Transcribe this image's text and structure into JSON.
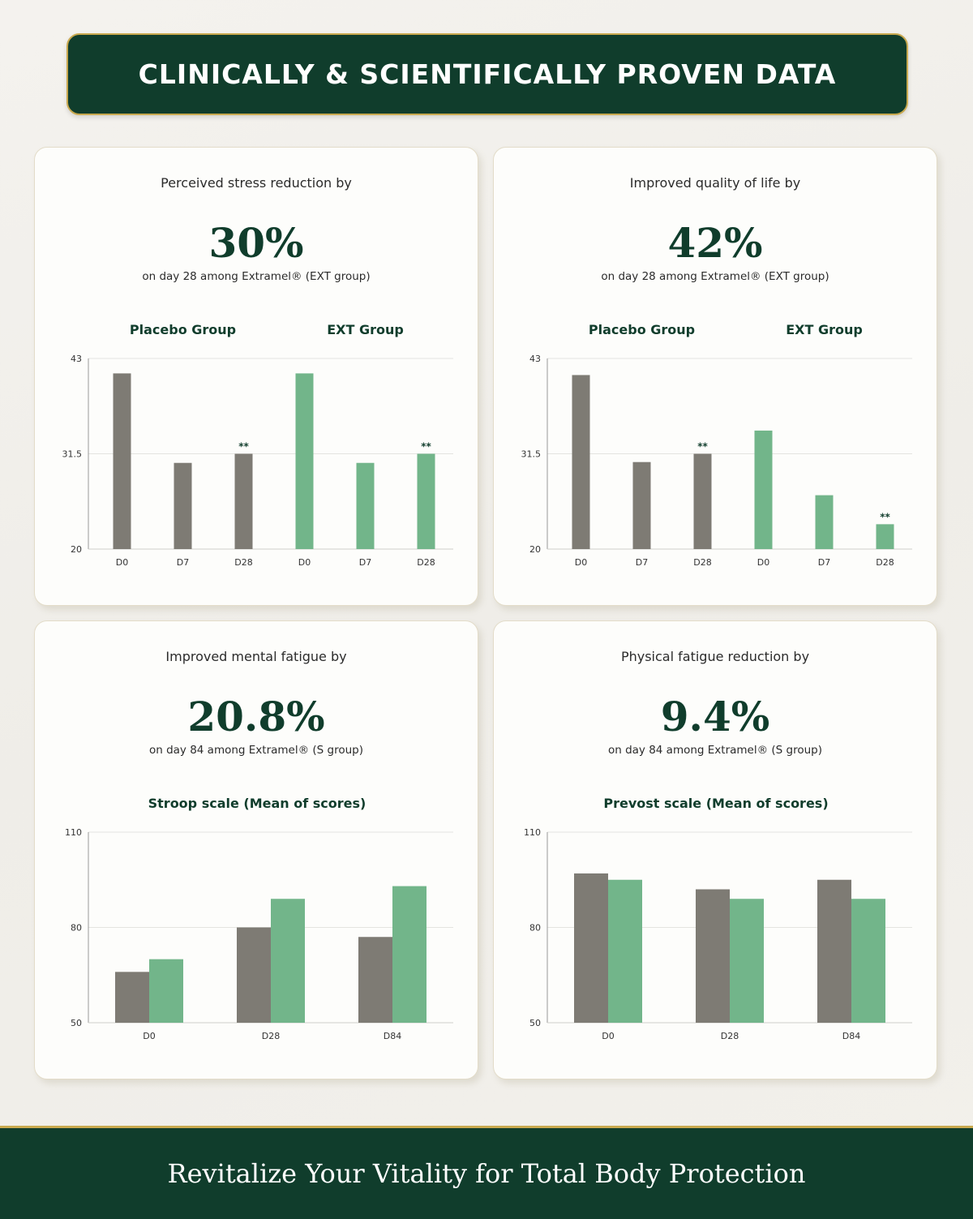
{
  "header": {
    "title": "CLINICALLY & SCIENTIFICALLY PROVEN DATA"
  },
  "footer": {
    "tagline": "Revitalize Your Vitality for Total Body Protection"
  },
  "colors": {
    "placebo": "#7e7b74",
    "ext": "#72b58a",
    "dark_green": "#103d2c",
    "gold": "#c9a94f"
  },
  "cards": [
    {
      "intro": "Perceived stress reduction by",
      "percent": "30%",
      "detail": "on day 28 among Extramel® (EXT group)"
    },
    {
      "intro": "Improved quality of life by",
      "percent": "42%",
      "detail": "on day 28 among Extramel® (EXT group)"
    },
    {
      "intro": "Improved mental fatigue by",
      "percent": "20.8%",
      "detail": "on day 84 among Extramel® (S group)"
    },
    {
      "intro": "Physical fatigue reduction by",
      "percent": "9.4%",
      "detail": "on day 84 among Extramel® (S group)"
    }
  ],
  "chart_data": [
    {
      "type": "bar",
      "title": "",
      "group_labels": [
        "Placebo Group",
        "EXT Group"
      ],
      "categories": [
        "D0",
        "D7",
        "D28",
        "D0",
        "D7",
        "D28"
      ],
      "values": [
        41.2,
        30.4,
        31.5,
        41.2,
        30.4,
        31.5
      ],
      "group": [
        0,
        0,
        0,
        1,
        1,
        1
      ],
      "annotations": [
        "",
        "",
        "**",
        "",
        "",
        "**"
      ],
      "ylim": [
        20,
        43
      ],
      "yticks": [
        20,
        31.5,
        43
      ],
      "ytick_labels": [
        "20",
        "31.5",
        "43"
      ],
      "grid": true
    },
    {
      "type": "bar",
      "title": "",
      "group_labels": [
        "Placebo Group",
        "EXT Group"
      ],
      "categories": [
        "D0",
        "D7",
        "D28",
        "D0",
        "D7",
        "D28"
      ],
      "values": [
        41.0,
        30.5,
        31.5,
        34.3,
        26.5,
        23.0
      ],
      "group": [
        0,
        0,
        0,
        1,
        1,
        1
      ],
      "annotations": [
        "",
        "",
        "**",
        "",
        "",
        "**"
      ],
      "ylim": [
        20,
        43
      ],
      "yticks": [
        20,
        31.5,
        43
      ],
      "ytick_labels": [
        "20",
        "31.5",
        "43"
      ],
      "grid": true
    },
    {
      "type": "bar",
      "title": "Stroop scale (Mean of scores)",
      "categories": [
        "D0",
        "D28",
        "D84"
      ],
      "series": [
        {
          "values": [
            66,
            80,
            77
          ]
        },
        {
          "values": [
            70,
            89,
            93
          ]
        }
      ],
      "ylim": [
        50,
        110
      ],
      "yticks": [
        50,
        80,
        110
      ],
      "ytick_labels": [
        "50",
        "80",
        "110"
      ],
      "grid": true
    },
    {
      "type": "bar",
      "title": "Prevost scale (Mean of scores)",
      "categories": [
        "D0",
        "D28",
        "D84"
      ],
      "series": [
        {
          "values": [
            97,
            92,
            95
          ]
        },
        {
          "values": [
            95,
            89,
            89
          ]
        }
      ],
      "ylim": [
        50,
        110
      ],
      "yticks": [
        50,
        80,
        110
      ],
      "ytick_labels": [
        "50",
        "80",
        "110"
      ],
      "grid": true
    }
  ]
}
